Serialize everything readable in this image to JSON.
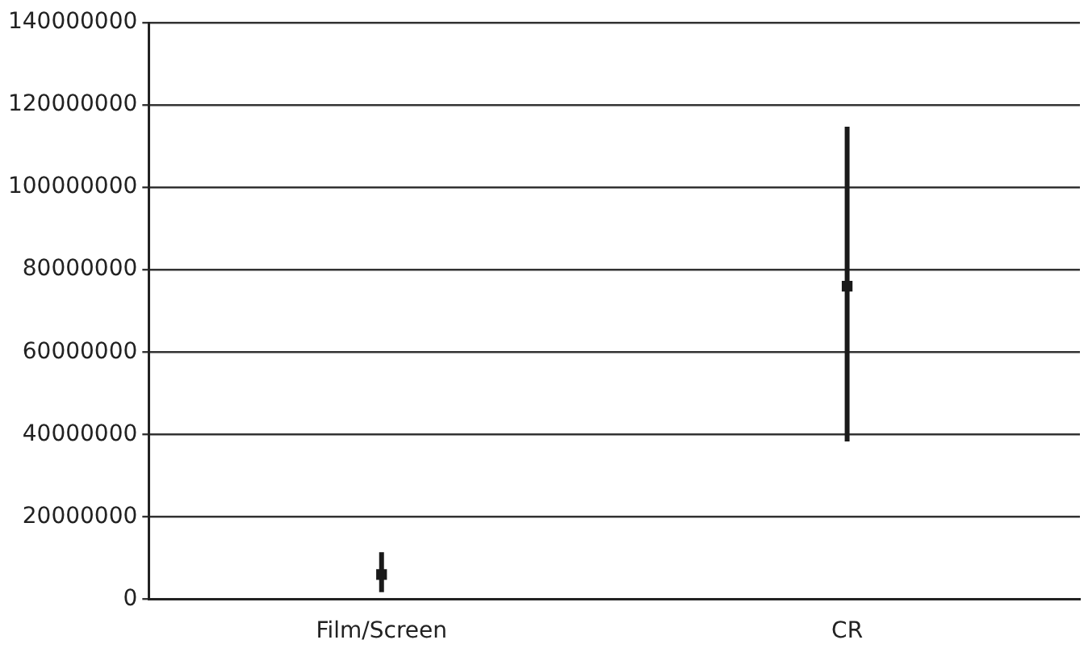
{
  "chart_data": {
    "type": "scatter",
    "categories": [
      "Film/Screen",
      "CR"
    ],
    "series": [
      {
        "color": "#1a1a1a",
        "values": [
          6000000,
          76000000
        ],
        "errors": [
          [
            1700000,
            11400000
          ],
          [
            38300000,
            114700000
          ]
        ]
      }
    ],
    "ylim": [
      0,
      140000000
    ],
    "yticks": [
      0,
      20000000,
      40000000,
      60000000,
      80000000,
      100000000,
      120000000,
      140000000
    ],
    "grid": "y",
    "legend": false,
    "marker": "square"
  }
}
